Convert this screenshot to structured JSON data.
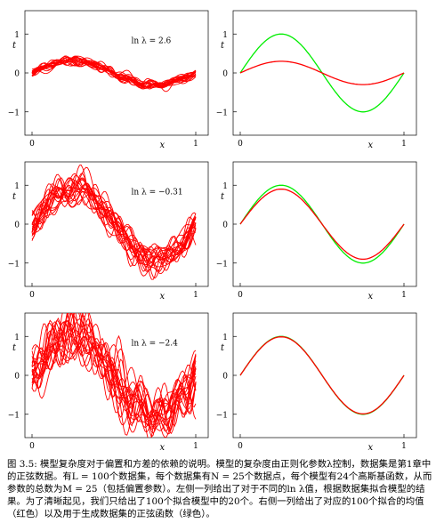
{
  "chart_data": [
    {
      "type": "line",
      "panel": "top-left",
      "x_ticks": [
        0,
        1
      ],
      "y_ticks": [
        -1,
        0,
        1
      ],
      "xlabel": "x",
      "ylabel": "t",
      "annotation": "ln λ = 2.6",
      "xlim": [
        0,
        1
      ],
      "ylim": [
        -1.6,
        1.6
      ],
      "series": [
        {
          "color": "#ff0000",
          "count": 20,
          "amplitude": 0.3,
          "noise": 0.06
        }
      ]
    },
    {
      "type": "line",
      "panel": "top-right",
      "x_ticks": [
        0,
        1
      ],
      "y_ticks": [
        -1,
        0,
        1
      ],
      "xlabel": "x",
      "ylabel": "t",
      "xlim": [
        0,
        1
      ],
      "ylim": [
        -1.6,
        1.6
      ],
      "series": [
        {
          "color": "#00ee00",
          "function": "sin(2πx)",
          "amplitude": 1.0
        },
        {
          "color": "#ff0000",
          "function": "average fit",
          "amplitude": 0.3
        }
      ]
    },
    {
      "type": "line",
      "panel": "middle-left",
      "x_ticks": [
        0,
        1
      ],
      "y_ticks": [
        -1,
        0,
        1
      ],
      "xlabel": "x",
      "ylabel": "t",
      "annotation": "ln λ = −0.31",
      "xlim": [
        0,
        1
      ],
      "ylim": [
        -1.6,
        1.6
      ],
      "series": [
        {
          "color": "#ff0000",
          "count": 20,
          "amplitude": 0.9,
          "noise": 0.2
        }
      ]
    },
    {
      "type": "line",
      "panel": "middle-right",
      "x_ticks": [
        0,
        1
      ],
      "y_ticks": [
        -1,
        0,
        1
      ],
      "xlabel": "x",
      "ylabel": "t",
      "xlim": [
        0,
        1
      ],
      "ylim": [
        -1.6,
        1.6
      ],
      "series": [
        {
          "color": "#00ee00",
          "function": "sin(2πx)",
          "amplitude": 1.0
        },
        {
          "color": "#ff0000",
          "function": "average fit",
          "amplitude": 0.9
        }
      ]
    },
    {
      "type": "line",
      "panel": "bottom-left",
      "x_ticks": [
        0,
        1
      ],
      "y_ticks": [
        -1,
        0,
        1
      ],
      "xlabel": "x",
      "ylabel": "t",
      "annotation": "ln λ = −2.4",
      "xlim": [
        0,
        1
      ],
      "ylim": [
        -1.6,
        1.6
      ],
      "series": [
        {
          "color": "#ff0000",
          "count": 20,
          "amplitude": 1.0,
          "noise": 0.35
        }
      ]
    },
    {
      "type": "line",
      "panel": "bottom-right",
      "x_ticks": [
        0,
        1
      ],
      "y_ticks": [
        -1,
        0,
        1
      ],
      "xlabel": "x",
      "ylabel": "t",
      "xlim": [
        0,
        1
      ],
      "ylim": [
        -1.6,
        1.6
      ],
      "series": [
        {
          "color": "#00ee00",
          "function": "sin(2πx)",
          "amplitude": 1.0
        },
        {
          "color": "#ff0000",
          "function": "average fit",
          "amplitude": 0.99
        }
      ]
    }
  ],
  "caption": {
    "line1": "图 3.5: 模型复杂度对于偏置和方差的依赖的说明。模型的复杂度由正则化参数λ控制，数据集是第1章中",
    "line2": "的正弦数据。有L = 100个数据集，每个数据集有N = 25个数据点，每个模型有24个高斯基函数，从而",
    "line3": "参数的总数为M = 25（包括偏置参数）。左侧一列给出了对于不同的ln λ值，根据数据集拟合模型的结",
    "line4": "果。为了清晰起见，我们只给出了100个拟合模型中的20个。右侧一列给出了对应的100个拟合的均值",
    "line5": "（红色）以及用于生成数据集的正弦函数（绿色）。"
  }
}
